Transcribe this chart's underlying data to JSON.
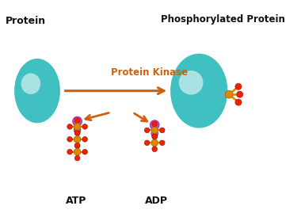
{
  "background_color": "#ffffff",
  "protein_color_teal": "#40c0c0",
  "protein_highlight": "#b0e8e8",
  "arrow_color": "#d06010",
  "text_color_dark": "#111111",
  "purple_color": "#cc44cc",
  "phosphorus_color": "#dd8800",
  "oxygen_color": "#ee2200",
  "bond_color": "#9999cc",
  "label_protein": "Protein",
  "label_phospho": "Phosphorylated Protein",
  "label_kinase": "Protein Kinase",
  "label_atp": "ATP",
  "label_adp": "ADP",
  "figw": 3.8,
  "figh": 2.79,
  "dpi": 100
}
